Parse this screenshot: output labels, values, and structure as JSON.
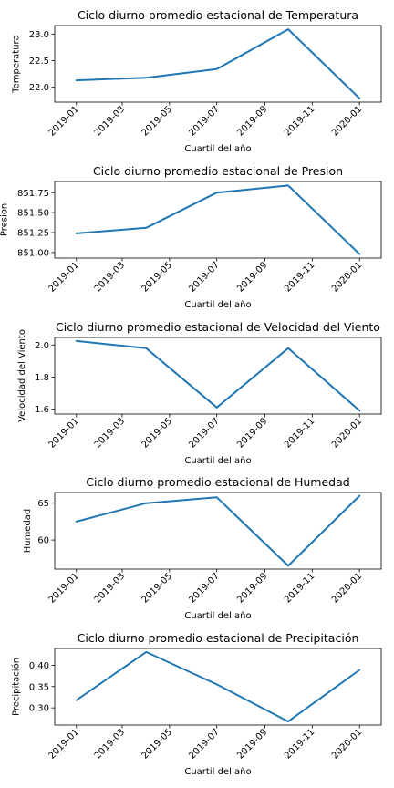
{
  "chart_data": [
    {
      "type": "line",
      "title": "Ciclo diurno promedio estacional de Temperatura",
      "xlabel": "Cuartil del año",
      "ylabel": "Temperatura",
      "x": [
        "2019-01-01",
        "2019-04-01",
        "2019-07-01",
        "2019-10-01",
        "2020-01-01"
      ],
      "values": [
        22.13,
        22.18,
        22.34,
        23.09,
        21.79
      ],
      "xlim": [
        "2018-12-04",
        "2020-01-29"
      ],
      "ylim": [
        21.72,
        23.16
      ],
      "xticks": [
        "2019-01",
        "2019-03",
        "2019-05",
        "2019-07",
        "2019-09",
        "2019-11",
        "2020-01"
      ],
      "yticks": [
        "22.0",
        "22.5",
        "23.0"
      ],
      "color": "#1f77b4",
      "grid": false
    },
    {
      "type": "line",
      "title": "Ciclo diurno promedio estacional de Presion",
      "xlabel": "Cuartil del año",
      "ylabel": "Presion",
      "x": [
        "2019-01-01",
        "2019-04-01",
        "2019-07-01",
        "2019-10-01",
        "2020-01-01"
      ],
      "values": [
        851.24,
        851.31,
        851.75,
        851.84,
        850.98
      ],
      "xlim": [
        "2018-12-04",
        "2020-01-29"
      ],
      "ylim": [
        850.93,
        851.89
      ],
      "xticks": [
        "2019-01",
        "2019-03",
        "2019-05",
        "2019-07",
        "2019-09",
        "2019-11",
        "2020-01"
      ],
      "yticks": [
        "851.00",
        "851.25",
        "851.50",
        "851.75"
      ],
      "color": "#1f77b4",
      "grid": false
    },
    {
      "type": "line",
      "title": "Ciclo diurno promedio estacional de Velocidad del Viento",
      "xlabel": "Cuartil del año",
      "ylabel": "Velocidad del Viento",
      "x": [
        "2019-01-01",
        "2019-04-01",
        "2019-07-01",
        "2019-10-01",
        "2020-01-01"
      ],
      "values": [
        2.025,
        1.98,
        1.61,
        1.98,
        1.59
      ],
      "xlim": [
        "2018-12-04",
        "2020-01-29"
      ],
      "ylim": [
        1.569,
        2.047
      ],
      "xticks": [
        "2019-01",
        "2019-03",
        "2019-05",
        "2019-07",
        "2019-09",
        "2019-11",
        "2020-01"
      ],
      "yticks": [
        "1.6",
        "1.8",
        "2.0"
      ],
      "color": "#1f77b4",
      "grid": false
    },
    {
      "type": "line",
      "title": "Ciclo diurno promedio estacional de Humedad",
      "xlabel": "Cuartil del año",
      "ylabel": "Humedad",
      "x": [
        "2019-01-01",
        "2019-04-01",
        "2019-07-01",
        "2019-10-01",
        "2020-01-01"
      ],
      "values": [
        62.5,
        65.0,
        65.8,
        56.5,
        66.0
      ],
      "xlim": [
        "2018-12-04",
        "2020-01-29"
      ],
      "ylim": [
        56.05,
        66.45
      ],
      "xticks": [
        "2019-01",
        "2019-03",
        "2019-05",
        "2019-07",
        "2019-09",
        "2019-11",
        "2020-01"
      ],
      "yticks": [
        "60",
        "65"
      ],
      "color": "#1f77b4",
      "grid": false
    },
    {
      "type": "line",
      "title": "Ciclo diurno promedio estacional de Precipitación",
      "xlabel": "Cuartil del año",
      "ylabel": "Precipitación",
      "x": [
        "2019-01-01",
        "2019-04-01",
        "2019-07-01",
        "2019-10-01",
        "2020-01-01"
      ],
      "values": [
        0.318,
        0.431,
        0.355,
        0.268,
        0.389
      ],
      "xlim": [
        "2018-12-04",
        "2020-01-29"
      ],
      "ylim": [
        0.2597,
        0.4393
      ],
      "xticks": [
        "2019-01",
        "2019-03",
        "2019-05",
        "2019-07",
        "2019-09",
        "2019-11",
        "2020-01"
      ],
      "yticks": [
        "0.30",
        "0.35",
        "0.40"
      ],
      "color": "#1f77b4",
      "grid": false
    }
  ]
}
